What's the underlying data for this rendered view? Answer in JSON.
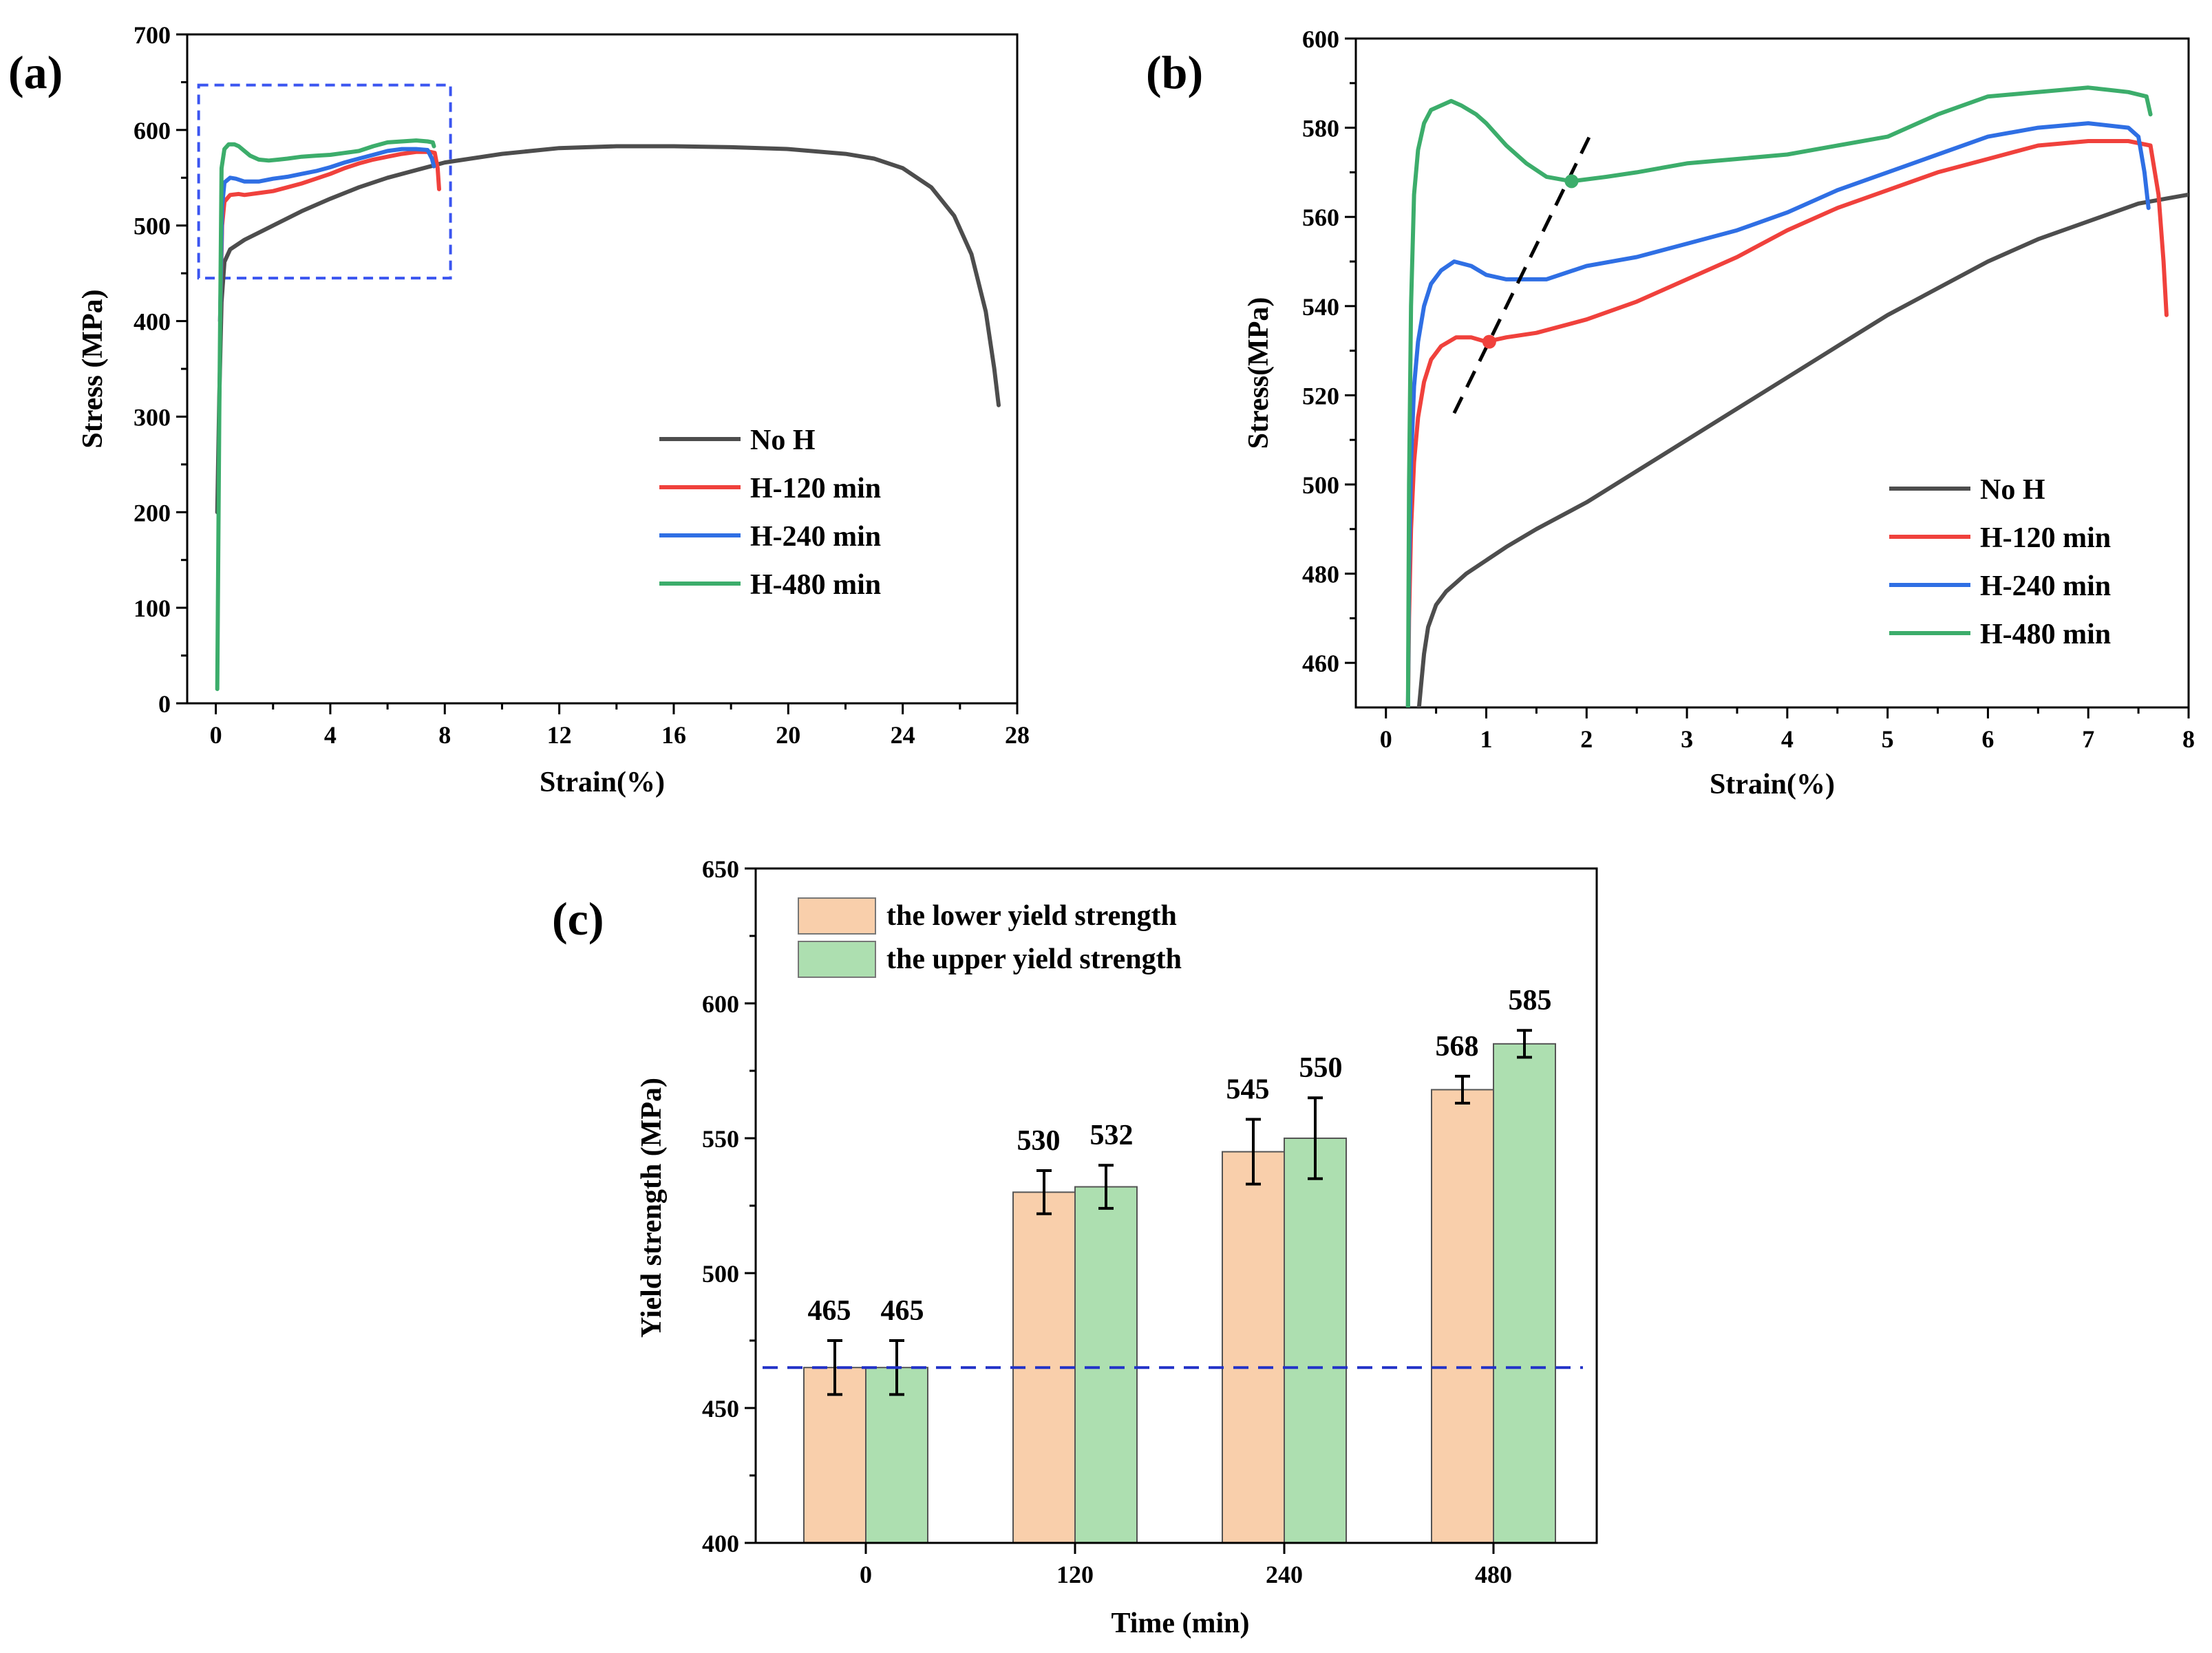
{
  "figure": {
    "panels": [
      "(a)",
      "(b)",
      "(c)"
    ]
  },
  "colors": {
    "no_h": "#4d4d4d",
    "h120": "#f0413c",
    "h240": "#2f6fe4",
    "h480": "#3cad6b",
    "lower_bar": "#f9cfab",
    "upper_bar": "#addfb0",
    "dashed_blue": "#2232c8",
    "inset_box": "#3b55f0"
  },
  "chart_data": [
    {
      "id": "a",
      "type": "line",
      "panel_label": "(a)",
      "title": "",
      "xlabel": "Strain(%)",
      "ylabel": "Stress (MPa)",
      "xlim": [
        -1,
        28
      ],
      "ylim": [
        0,
        700
      ],
      "xticks": [
        0,
        4,
        8,
        12,
        16,
        20,
        24,
        28
      ],
      "yticks": [
        0,
        100,
        200,
        300,
        400,
        500,
        600,
        700
      ],
      "legend_position": "bottom-right",
      "inset_box": {
        "x": [
          -0.6,
          8.2
        ],
        "y": [
          445,
          647
        ],
        "style": "dashed"
      },
      "series": [
        {
          "name": "No H",
          "color_key": "no_h",
          "x": [
            0.05,
            0.12,
            0.2,
            0.3,
            0.5,
            1.0,
            2.0,
            3.0,
            4.0,
            5.0,
            6.0,
            7.0,
            8.0,
            10.0,
            12.0,
            14.0,
            16.0,
            18.0,
            20.0,
            22.0,
            23.0,
            24.0,
            25.0,
            25.8,
            26.4,
            26.9,
            27.2,
            27.35
          ],
          "y": [
            200,
            320,
            420,
            462,
            475,
            485,
            500,
            515,
            528,
            540,
            550,
            558,
            566,
            575,
            581,
            583,
            583,
            582,
            580,
            575,
            570,
            560,
            540,
            510,
            470,
            410,
            350,
            312
          ]
        },
        {
          "name": "H-120 min",
          "color_key": "h120",
          "x": [
            0.15,
            0.22,
            0.3,
            0.5,
            0.8,
            1.0,
            1.5,
            2.0,
            2.5,
            3.0,
            3.5,
            4.0,
            4.5,
            5.0,
            5.5,
            6.0,
            6.5,
            7.0,
            7.5,
            7.65,
            7.75,
            7.8
          ],
          "y": [
            400,
            500,
            525,
            532,
            533,
            532,
            534,
            536,
            540,
            544,
            549,
            554,
            560,
            565,
            569,
            572,
            575,
            577,
            577,
            576,
            560,
            538
          ]
        },
        {
          "name": "H-240 min",
          "color_key": "h240",
          "x": [
            0.15,
            0.22,
            0.3,
            0.5,
            0.7,
            1.0,
            1.2,
            1.5,
            2.0,
            2.5,
            3.0,
            3.5,
            4.0,
            4.5,
            5.0,
            5.5,
            6.0,
            6.5,
            7.0,
            7.4,
            7.55,
            7.62
          ],
          "y": [
            400,
            520,
            545,
            550,
            549,
            546,
            546,
            546,
            549,
            551,
            554,
            557,
            561,
            566,
            570,
            574,
            578,
            580,
            580,
            579,
            570,
            562
          ]
        },
        {
          "name": "H-480 min",
          "color_key": "h480",
          "x": [
            0.05,
            0.12,
            0.2,
            0.3,
            0.45,
            0.65,
            0.8,
            1.0,
            1.2,
            1.5,
            1.85,
            2.2,
            2.5,
            3.0,
            3.5,
            4.0,
            4.5,
            5.0,
            5.5,
            6.0,
            6.5,
            7.0,
            7.4,
            7.58,
            7.62
          ],
          "y": [
            15,
            300,
            560,
            580,
            585,
            585,
            583,
            578,
            573,
            569,
            568,
            569,
            570,
            572,
            573,
            574,
            576,
            578,
            583,
            587,
            588,
            589,
            588,
            587,
            583
          ]
        }
      ]
    },
    {
      "id": "b",
      "type": "line",
      "panel_label": "(b)",
      "title": "",
      "xlabel": "Strain(%)",
      "ylabel": "Stress(MPa)",
      "xlim": [
        -0.3,
        8
      ],
      "ylim": [
        450,
        600
      ],
      "xticks": [
        0,
        1,
        2,
        3,
        4,
        5,
        6,
        7,
        8
      ],
      "yticks": [
        460,
        480,
        500,
        520,
        540,
        560,
        580,
        600
      ],
      "legend_position": "bottom-right",
      "dashed_line": {
        "x": [
          0.68,
          2.05
        ],
        "y": [
          516,
          579
        ]
      },
      "markers": [
        {
          "x": 1.03,
          "y": 532,
          "color_key": "h120"
        },
        {
          "x": 1.85,
          "y": 568,
          "color_key": "h480"
        }
      ],
      "series": [
        {
          "name": "No H",
          "color_key": "no_h",
          "x": [
            0.33,
            0.35,
            0.38,
            0.42,
            0.5,
            0.6,
            0.7,
            0.8,
            1.0,
            1.2,
            1.5,
            2.0,
            2.5,
            3.0,
            3.5,
            4.0,
            4.5,
            5.0,
            5.5,
            6.0,
            6.5,
            7.0,
            7.5,
            8.0
          ],
          "y": [
            450,
            455,
            462,
            468,
            473,
            476,
            478,
            480,
            483,
            486,
            490,
            496,
            503,
            510,
            517,
            524,
            531,
            538,
            544,
            550,
            555,
            559,
            563,
            565
          ]
        },
        {
          "name": "H-120 min",
          "color_key": "h120",
          "x": [
            0.22,
            0.23,
            0.25,
            0.28,
            0.32,
            0.38,
            0.45,
            0.55,
            0.7,
            0.85,
            1.0,
            1.2,
            1.5,
            2.0,
            2.5,
            3.0,
            3.5,
            4.0,
            4.5,
            5.0,
            5.5,
            6.0,
            6.5,
            7.0,
            7.4,
            7.62,
            7.7,
            7.75,
            7.78
          ],
          "y": [
            450,
            470,
            490,
            505,
            515,
            523,
            528,
            531,
            533,
            533,
            532,
            533,
            534,
            537,
            541,
            546,
            551,
            557,
            562,
            566,
            570,
            573,
            576,
            577,
            577,
            576,
            565,
            550,
            538
          ]
        },
        {
          "name": "H-240 min",
          "color_key": "h240",
          "x": [
            0.22,
            0.23,
            0.25,
            0.28,
            0.32,
            0.38,
            0.45,
            0.55,
            0.68,
            0.85,
            1.0,
            1.2,
            1.4,
            1.6,
            2.0,
            2.5,
            3.0,
            3.5,
            4.0,
            4.5,
            5.0,
            5.5,
            6.0,
            6.5,
            7.0,
            7.4,
            7.5,
            7.56,
            7.6
          ],
          "y": [
            450,
            480,
            505,
            522,
            532,
            540,
            545,
            548,
            550,
            549,
            547,
            546,
            546,
            546,
            549,
            551,
            554,
            557,
            561,
            566,
            570,
            574,
            578,
            580,
            581,
            580,
            578,
            570,
            562
          ]
        },
        {
          "name": "H-480 min",
          "color_key": "h480",
          "x": [
            0.22,
            0.23,
            0.25,
            0.28,
            0.32,
            0.38,
            0.45,
            0.55,
            0.65,
            0.75,
            0.9,
            1.0,
            1.2,
            1.4,
            1.6,
            1.85,
            2.2,
            2.5,
            3.0,
            3.5,
            4.0,
            4.5,
            5.0,
            5.5,
            6.0,
            6.5,
            7.0,
            7.4,
            7.58,
            7.62
          ],
          "y": [
            450,
            500,
            540,
            565,
            575,
            581,
            584,
            585,
            586,
            585,
            583,
            581,
            576,
            572,
            569,
            568,
            569,
            570,
            572,
            573,
            574,
            576,
            578,
            583,
            587,
            588,
            589,
            588,
            587,
            583
          ]
        }
      ]
    },
    {
      "id": "c",
      "type": "bar",
      "panel_label": "(c)",
      "title": "",
      "xlabel": "Time (min)",
      "ylabel": "Yield strength (MPa)",
      "categories": [
        "0",
        "120",
        "240",
        "480"
      ],
      "ylim": [
        400,
        650
      ],
      "yticks": [
        400,
        450,
        500,
        550,
        600,
        650
      ],
      "reference_line": 465,
      "legend_position": "top-left",
      "series": [
        {
          "name": "the lower yield strength",
          "color_key": "lower_bar",
          "values": [
            465,
            530,
            545,
            568
          ],
          "errors": [
            10,
            8,
            12,
            5
          ],
          "labels": [
            "465",
            "530",
            "545",
            "568"
          ]
        },
        {
          "name": "the upper yield strength",
          "color_key": "upper_bar",
          "values": [
            465,
            532,
            550,
            585
          ],
          "errors": [
            10,
            8,
            15,
            5
          ],
          "labels": [
            "465",
            "532",
            "550",
            "585"
          ]
        }
      ]
    }
  ]
}
